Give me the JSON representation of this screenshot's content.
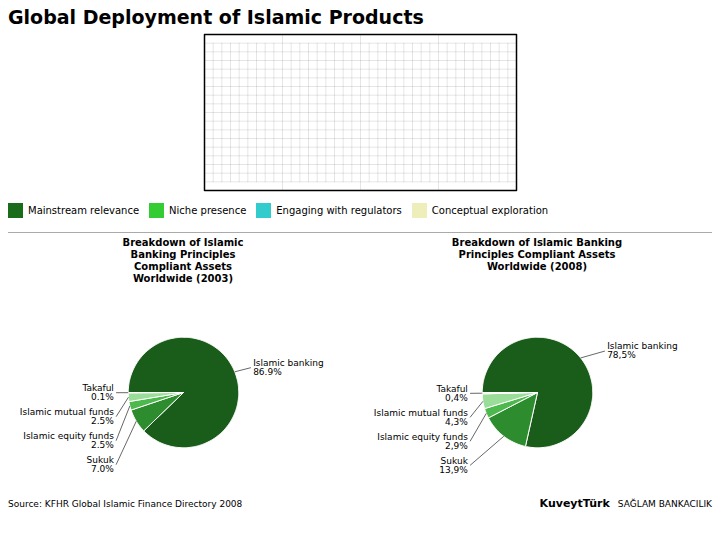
{
  "chart_data": [
    {
      "type": "map",
      "title": "Global Deployment of Islamic Products",
      "series": [
        {
          "name": "Mainstream relevance",
          "color": "#1a6b1a"
        },
        {
          "name": "Niche presence",
          "color": "#33cc33"
        },
        {
          "name": "Engaging with regulators",
          "color": "#33cccc"
        },
        {
          "name": "Conceptual exploration",
          "color": "#eeeebb"
        }
      ],
      "legend": "bottom",
      "annotations": [
        "Source: KFHR Global Islamic Finance Directory 2008",
        "KuveytTürk",
        "SAĞLAM BANKACILIK"
      ]
    },
    {
      "type": "pie",
      "title": "Breakdown of Islamic\nBanking Principles\nCompliant Assets\nWorldwide (2003)",
      "categories": [
        "Islamic banking",
        "Sukuk",
        "Islamic equity funds",
        "Islamic mutual funds",
        "Takaful"
      ],
      "values": [
        86.9,
        7.0,
        2.5,
        2.5,
        0.1
      ],
      "value_labels": [
        "86.9%",
        "7.0%",
        "2.5%",
        "2.5%",
        "0.1%"
      ],
      "colors": [
        "#1a5c1a",
        "#2d8c2d",
        "#4db84d",
        "#99dd99",
        "#cceecc"
      ],
      "data_labels": true
    },
    {
      "type": "pie",
      "title": "Breakdown of Islamic Banking\nPrinciples Compliant Assets\nWorldwide (2008)",
      "categories": [
        "Islamic banking",
        "Sukuk",
        "Islamic equity funds",
        "Islamic mutual funds",
        "Takaful"
      ],
      "values": [
        78.5,
        13.9,
        2.9,
        4.3,
        0.4
      ],
      "value_labels": [
        "78,5%",
        "13,9%",
        "2,9%",
        "4,3%",
        "0,4%"
      ],
      "colors": [
        "#1a5c1a",
        "#2d8c2d",
        "#4db84d",
        "#99dd99",
        "#cceecc"
      ],
      "data_labels": true
    }
  ]
}
